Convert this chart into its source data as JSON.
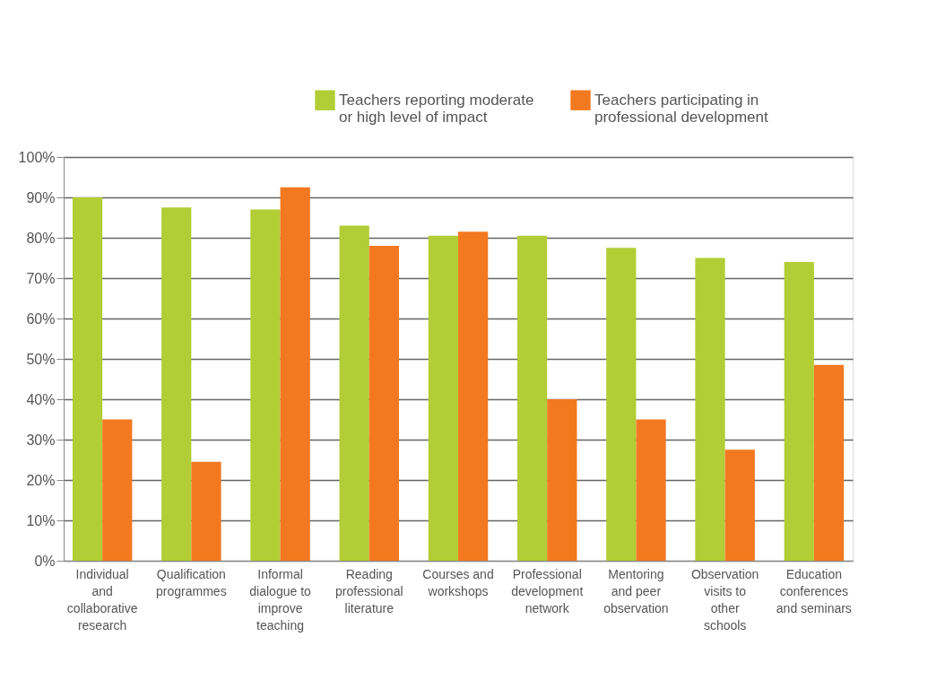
{
  "chart_data": {
    "type": "bar",
    "categories": [
      "Individual and collaborative research",
      "Qualification programmes",
      "Informal dialogue to improve teaching",
      "Reading professional literature",
      "Courses and workshops",
      "Professional development network",
      "Mentoring and peer observation",
      "Observation visits to other schools",
      "Education conferences and seminars"
    ],
    "series": [
      {
        "name": "Teachers reporting moderate or high level of impact",
        "color": "#b2cd35",
        "values": [
          90,
          87.5,
          87,
          83,
          80.5,
          80.5,
          77.5,
          75,
          74
        ]
      },
      {
        "name": "Teachers participating in professional development",
        "color": "#f37921",
        "values": [
          35,
          24.5,
          92.5,
          78,
          81.5,
          40,
          35,
          27.5,
          48.5
        ]
      }
    ],
    "ylim": [
      0,
      100
    ],
    "yticks": [
      {
        "value": 0,
        "label": "0%"
      },
      {
        "value": 10,
        "label": "10%"
      },
      {
        "value": 20,
        "label": "20%"
      },
      {
        "value": 30,
        "label": "30%"
      },
      {
        "value": 40,
        "label": "40%"
      },
      {
        "value": 50,
        "label": "50%"
      },
      {
        "value": 60,
        "label": "60%"
      },
      {
        "value": 70,
        "label": "70%"
      },
      {
        "value": 80,
        "label": "80%"
      },
      {
        "value": 90,
        "label": "90%"
      },
      {
        "value": 100,
        "label": "100%"
      }
    ],
    "grid": "y",
    "legend": "top right"
  }
}
